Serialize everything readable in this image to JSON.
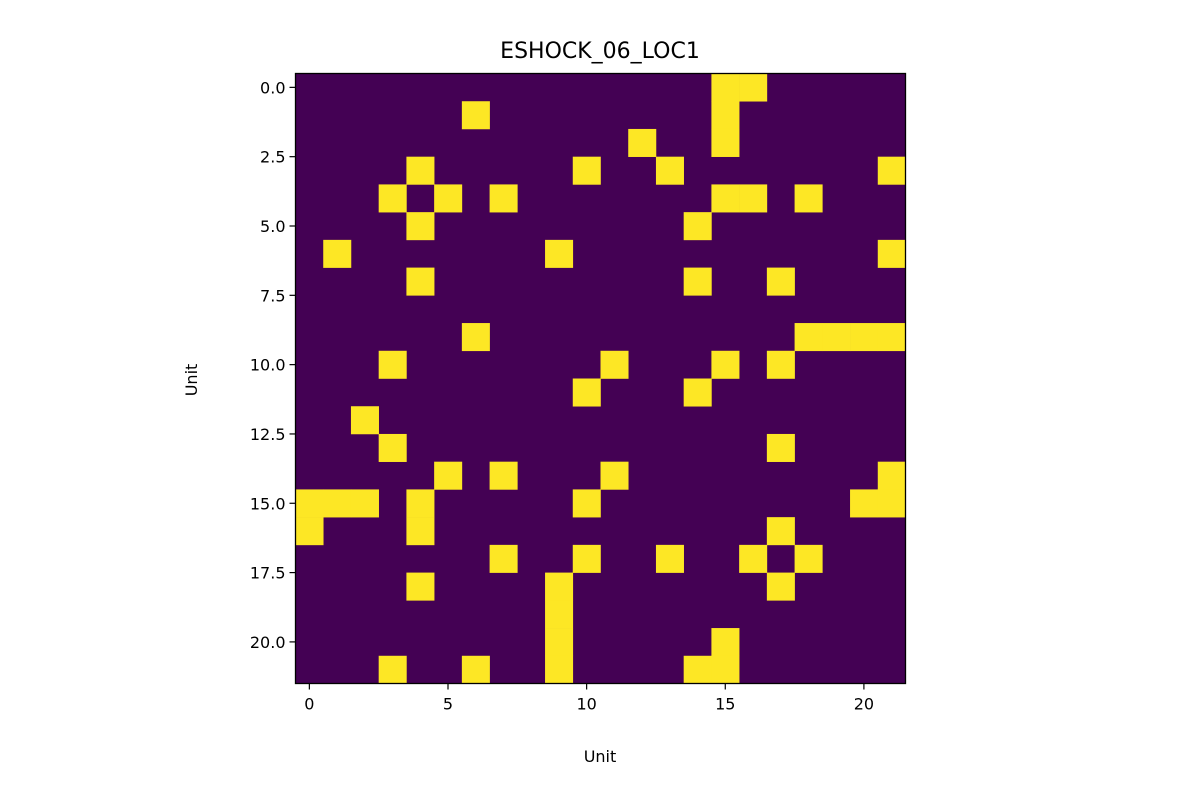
{
  "chart_data": {
    "type": "heatmap",
    "title": "ESHOCK_06_LOC1",
    "xlabel": "Unit",
    "ylabel": "Unit",
    "rows": 22,
    "cols": 22,
    "colormap": "viridis",
    "colors": {
      "off": "#440154",
      "on": "#fde725"
    },
    "y_inverted": true,
    "xlim": [
      -0.5,
      21.5
    ],
    "ylim": [
      21.5,
      -0.5
    ],
    "x_ticks": [
      0,
      5,
      10,
      15,
      20
    ],
    "x_tick_labels": [
      "0",
      "5",
      "10",
      "15",
      "20"
    ],
    "y_ticks": [
      0,
      2.5,
      5,
      7.5,
      10,
      12.5,
      15,
      17.5,
      20
    ],
    "y_tick_labels": [
      "0.0",
      "2.5",
      "5.0",
      "7.5",
      "10.0",
      "12.5",
      "15.0",
      "17.5",
      "20.0"
    ],
    "grid": false,
    "active_cells": [
      [
        0,
        15
      ],
      [
        0,
        16
      ],
      [
        1,
        6
      ],
      [
        1,
        15
      ],
      [
        2,
        12
      ],
      [
        2,
        15
      ],
      [
        3,
        4
      ],
      [
        3,
        10
      ],
      [
        3,
        13
      ],
      [
        3,
        21
      ],
      [
        4,
        3
      ],
      [
        4,
        5
      ],
      [
        4,
        7
      ],
      [
        4,
        15
      ],
      [
        4,
        16
      ],
      [
        4,
        18
      ],
      [
        5,
        4
      ],
      [
        5,
        14
      ],
      [
        6,
        1
      ],
      [
        6,
        9
      ],
      [
        6,
        21
      ],
      [
        7,
        4
      ],
      [
        7,
        14
      ],
      [
        7,
        17
      ],
      [
        9,
        6
      ],
      [
        9,
        18
      ],
      [
        9,
        19
      ],
      [
        9,
        20
      ],
      [
        9,
        21
      ],
      [
        10,
        3
      ],
      [
        10,
        11
      ],
      [
        10,
        15
      ],
      [
        10,
        17
      ],
      [
        11,
        10
      ],
      [
        11,
        14
      ],
      [
        12,
        2
      ],
      [
        13,
        3
      ],
      [
        13,
        17
      ],
      [
        14,
        5
      ],
      [
        14,
        7
      ],
      [
        14,
        11
      ],
      [
        14,
        21
      ],
      [
        15,
        0
      ],
      [
        15,
        1
      ],
      [
        15,
        2
      ],
      [
        15,
        4
      ],
      [
        15,
        10
      ],
      [
        15,
        20
      ],
      [
        15,
        21
      ],
      [
        16,
        0
      ],
      [
        16,
        4
      ],
      [
        16,
        17
      ],
      [
        17,
        7
      ],
      [
        17,
        10
      ],
      [
        17,
        13
      ],
      [
        17,
        16
      ],
      [
        17,
        18
      ],
      [
        18,
        4
      ],
      [
        18,
        9
      ],
      [
        18,
        17
      ],
      [
        19,
        9
      ],
      [
        20,
        9
      ],
      [
        20,
        15
      ],
      [
        21,
        3
      ],
      [
        21,
        6
      ],
      [
        21,
        9
      ],
      [
        21,
        14
      ],
      [
        21,
        15
      ]
    ]
  }
}
